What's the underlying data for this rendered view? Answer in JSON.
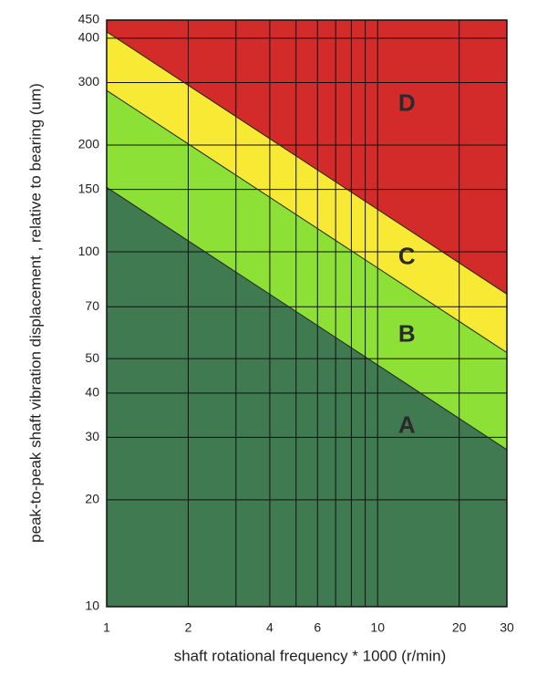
{
  "chart_data": {
    "type": "zones",
    "x_label": "shaft rotational frequency * 1000 (r/min)",
    "y_label": "peak-to-peak shaft vibration displacement , relative to bearing (um)",
    "x": [
      1,
      30
    ],
    "boundaries": [
      {
        "values": [
          152,
          27.7
        ]
      },
      {
        "values": [
          285,
          52
        ]
      },
      {
        "values": [
          417,
          76
        ]
      }
    ],
    "zones": [
      {
        "name": "A",
        "color": "#3f7a50"
      },
      {
        "name": "B",
        "color": "#8de035"
      },
      {
        "name": "C",
        "color": "#f7e934"
      },
      {
        "name": "D",
        "color": "#d32a2a"
      }
    ],
    "xlim": [
      1,
      30
    ],
    "ylim": [
      10,
      450
    ],
    "log_x": true,
    "log_y": true,
    "xticks": [
      1,
      2,
      4,
      6,
      10,
      20,
      30
    ],
    "x_minor_ticks": [
      3,
      5,
      7,
      8,
      9
    ],
    "yticks": [
      10,
      20,
      30,
      40,
      50,
      70,
      100,
      150,
      200,
      300,
      400,
      450
    ],
    "grid": true
  }
}
